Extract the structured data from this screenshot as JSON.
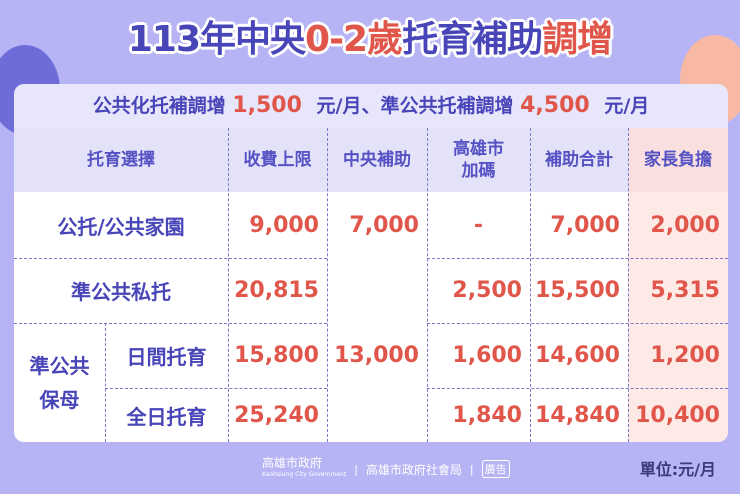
{
  "title": {
    "part1": "113年中央",
    "part2": "0-2歲",
    "part3": "托育補助",
    "part4": "調增"
  },
  "subtitle": {
    "t1": "公共化托補調增",
    "n1": "1,500",
    "u1": "元/月、準公共托補調增",
    "n2": "4,500",
    "u2": "元/月"
  },
  "table": {
    "headers": [
      "托育選擇",
      "收費上限",
      "中央補助",
      "高雄市加碼",
      "補助合計",
      "家長負擔"
    ],
    "rows": [
      {
        "label": "公托/公共家園",
        "fee": "9,000",
        "central": "7,000",
        "city": "-",
        "total": "7,000",
        "parent": "2,000"
      },
      {
        "label": "準公共私托",
        "fee": "20,815",
        "city": "2,500",
        "total": "15,500",
        "parent": "5,315"
      },
      {
        "group": "準公共保母",
        "label": "日間托育",
        "fee": "15,800",
        "city": "1,600",
        "total": "14,600",
        "parent": "1,200"
      },
      {
        "label": "全日托育",
        "fee": "25,240",
        "city": "1,840",
        "total": "14,840",
        "parent": "10,400"
      }
    ],
    "central_shared": "13,000"
  },
  "footer": {
    "gov": "高雄市政府",
    "gov_en": "Kaohsiung City Government",
    "bureau": "高雄市政府社會局",
    "ad": "廣告",
    "unit": "單位:元/月"
  },
  "colors": {
    "background": "#b7b4f5",
    "primary": "#4845b8",
    "accent": "#e1564a",
    "parent_column": "#fde9e5"
  }
}
